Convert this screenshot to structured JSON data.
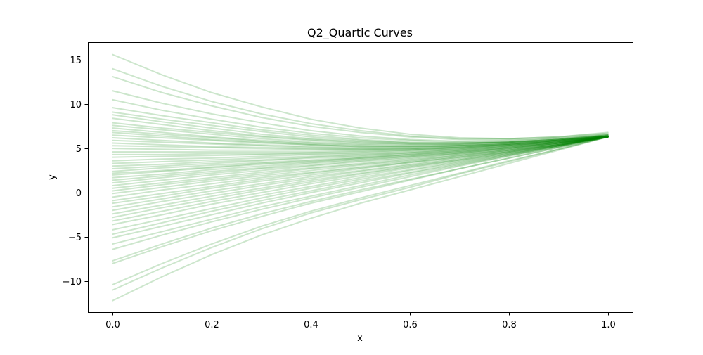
{
  "chart_data": {
    "type": "line",
    "title": "Q2_Quartic Curves",
    "xlabel": "x",
    "ylabel": "y",
    "xlim": [
      -0.05,
      1.05
    ],
    "ylim": [
      -13.5,
      17.0
    ],
    "xticks": [
      0.0,
      0.2,
      0.4,
      0.6,
      0.8,
      1.0
    ],
    "xtick_labels": [
      "0.0",
      "0.2",
      "0.4",
      "0.6",
      "0.8",
      "1.0"
    ],
    "yticks": [
      -10,
      -5,
      0,
      5,
      10,
      15
    ],
    "ytick_labels": [
      "−10",
      "−5",
      "0",
      "5",
      "10",
      "15"
    ],
    "grid": false,
    "legend": "none",
    "line_color": "#008000",
    "line_opacity": 0.2,
    "x": [
      0.0,
      0.1,
      0.2,
      0.3,
      0.4,
      0.5,
      0.6,
      0.7,
      0.8,
      0.9,
      1.0
    ],
    "series": [
      {
        "values": [
          15.6,
          13.3,
          11.3,
          9.7,
          8.3,
          7.3,
          6.6,
          6.2,
          6.1,
          6.3,
          6.8
        ]
      },
      {
        "values": [
          14.0,
          12.0,
          10.3,
          8.9,
          7.8,
          7.0,
          6.4,
          6.1,
          6.1,
          6.3,
          6.7
        ]
      },
      {
        "values": [
          13.1,
          11.3,
          9.8,
          8.5,
          7.5,
          6.8,
          6.3,
          6.0,
          6.0,
          6.2,
          6.6
        ]
      },
      {
        "values": [
          11.5,
          10.1,
          8.9,
          7.9,
          7.0,
          6.4,
          6.0,
          5.8,
          5.9,
          6.1,
          6.6
        ]
      },
      {
        "values": [
          10.5,
          9.3,
          8.3,
          7.4,
          6.7,
          6.2,
          5.9,
          5.7,
          5.8,
          6.1,
          6.5
        ]
      },
      {
        "values": [
          9.6,
          8.7,
          7.9,
          7.1,
          6.5,
          6.0,
          5.7,
          5.6,
          5.7,
          6.0,
          6.5
        ]
      },
      {
        "values": [
          9.1,
          8.3,
          7.6,
          6.9,
          6.3,
          5.9,
          5.6,
          5.6,
          5.7,
          6.0,
          6.5
        ]
      },
      {
        "values": [
          8.8,
          8.0,
          7.3,
          6.6,
          6.1,
          5.8,
          5.6,
          5.6,
          5.7,
          6.0,
          6.4
        ]
      },
      {
        "values": [
          8.4,
          7.7,
          7.0,
          6.4,
          6.0,
          5.7,
          5.5,
          5.5,
          5.7,
          6.0,
          6.5
        ]
      },
      {
        "values": [
          7.9,
          7.3,
          6.8,
          6.3,
          5.9,
          5.6,
          5.5,
          5.5,
          5.7,
          6.0,
          6.4
        ]
      },
      {
        "values": [
          7.6,
          7.1,
          6.6,
          6.1,
          5.7,
          5.5,
          5.4,
          5.4,
          5.6,
          5.9,
          6.4
        ]
      },
      {
        "values": [
          7.3,
          6.8,
          6.3,
          5.9,
          5.6,
          5.4,
          5.3,
          5.4,
          5.6,
          5.9,
          6.4
        ]
      },
      {
        "values": [
          7.0,
          6.6,
          6.2,
          5.8,
          5.5,
          5.3,
          5.2,
          5.3,
          5.5,
          5.9,
          6.4
        ]
      },
      {
        "values": [
          6.8,
          6.4,
          6.0,
          5.7,
          5.4,
          5.2,
          5.2,
          5.3,
          5.5,
          5.9,
          6.4
        ]
      },
      {
        "values": [
          6.5,
          6.2,
          5.9,
          5.6,
          5.4,
          5.2,
          5.2,
          5.3,
          5.5,
          5.9,
          6.4
        ]
      },
      {
        "values": [
          6.2,
          5.9,
          5.6,
          5.4,
          5.2,
          5.1,
          5.1,
          5.2,
          5.5,
          5.9,
          6.4
        ]
      },
      {
        "values": [
          5.9,
          5.7,
          5.5,
          5.3,
          5.1,
          5.0,
          5.0,
          5.2,
          5.4,
          5.8,
          6.3
        ]
      },
      {
        "values": [
          5.6,
          5.4,
          5.2,
          5.1,
          5.0,
          4.9,
          5.0,
          5.1,
          5.4,
          5.8,
          6.4
        ]
      },
      {
        "values": [
          5.3,
          5.2,
          5.1,
          5.0,
          4.9,
          4.9,
          4.9,
          5.1,
          5.4,
          5.8,
          6.3
        ]
      },
      {
        "values": [
          5.0,
          4.9,
          4.8,
          4.8,
          4.8,
          4.8,
          4.9,
          5.1,
          5.4,
          5.8,
          6.3
        ]
      },
      {
        "values": [
          4.6,
          4.6,
          4.6,
          4.6,
          4.6,
          4.7,
          4.8,
          5.0,
          5.3,
          5.8,
          6.4
        ]
      },
      {
        "values": [
          4.3,
          4.3,
          4.4,
          4.4,
          4.5,
          4.6,
          4.8,
          5.0,
          5.3,
          5.7,
          6.3
        ]
      },
      {
        "values": [
          4.0,
          4.1,
          4.2,
          4.3,
          4.4,
          4.5,
          4.7,
          4.9,
          5.3,
          5.7,
          6.3
        ]
      },
      {
        "values": [
          3.6,
          3.8,
          3.9,
          4.1,
          4.3,
          4.4,
          4.6,
          4.9,
          5.2,
          5.7,
          6.4
        ]
      },
      {
        "values": [
          3.3,
          3.5,
          3.7,
          3.9,
          4.1,
          4.3,
          4.5,
          4.8,
          5.2,
          5.7,
          6.3
        ]
      },
      {
        "values": [
          3.0,
          3.2,
          3.5,
          3.7,
          4.0,
          4.2,
          4.5,
          4.8,
          5.2,
          5.7,
          6.3
        ]
      },
      {
        "values": [
          2.7,
          3.0,
          3.3,
          3.6,
          3.9,
          4.1,
          4.4,
          4.7,
          5.1,
          5.6,
          6.4
        ]
      },
      {
        "values": [
          2.4,
          2.8,
          3.1,
          3.4,
          3.7,
          4.0,
          4.3,
          4.7,
          5.1,
          5.6,
          6.3
        ]
      },
      {
        "values": [
          2.2,
          2.5,
          2.9,
          3.3,
          3.6,
          3.9,
          4.3,
          4.6,
          5.1,
          5.6,
          6.3
        ]
      },
      {
        "values": [
          2.0,
          2.4,
          2.8,
          3.2,
          3.5,
          3.9,
          4.2,
          4.6,
          5.0,
          5.6,
          6.4
        ]
      },
      {
        "values": [
          1.7,
          2.1,
          2.6,
          3.0,
          3.4,
          3.8,
          4.1,
          4.5,
          5.0,
          5.6,
          6.3
        ]
      },
      {
        "values": [
          1.4,
          1.9,
          2.4,
          2.8,
          3.3,
          3.7,
          4.1,
          4.5,
          5.0,
          5.6,
          6.3
        ]
      },
      {
        "values": [
          1.1,
          1.7,
          2.2,
          2.7,
          3.1,
          3.6,
          4.0,
          4.4,
          4.9,
          5.5,
          6.4
        ]
      },
      {
        "values": [
          0.8,
          1.4,
          2.0,
          2.5,
          3.0,
          3.5,
          3.9,
          4.4,
          4.9,
          5.5,
          6.3
        ]
      },
      {
        "values": [
          0.5,
          1.1,
          1.7,
          2.3,
          2.8,
          3.3,
          3.8,
          4.3,
          4.8,
          5.5,
          6.3
        ]
      },
      {
        "values": [
          0.2,
          0.9,
          1.5,
          2.1,
          2.7,
          3.2,
          3.7,
          4.2,
          4.8,
          5.5,
          6.4
        ]
      },
      {
        "values": [
          -0.1,
          0.6,
          1.3,
          1.9,
          2.5,
          3.1,
          3.6,
          4.2,
          4.8,
          5.4,
          6.3
        ]
      },
      {
        "values": [
          -0.5,
          0.3,
          1.0,
          1.7,
          2.3,
          2.9,
          3.5,
          4.1,
          4.7,
          5.4,
          6.3
        ]
      },
      {
        "values": [
          -0.9,
          -0.1,
          0.7,
          1.5,
          2.2,
          2.8,
          3.4,
          4.0,
          4.7,
          5.4,
          6.3
        ]
      },
      {
        "values": [
          -1.2,
          -0.4,
          0.5,
          1.3,
          2.0,
          2.7,
          3.4,
          4.0,
          4.6,
          5.4,
          6.4
        ]
      },
      {
        "values": [
          -1.6,
          -0.7,
          0.2,
          1.0,
          1.8,
          2.5,
          3.2,
          3.9,
          4.6,
          5.4,
          6.3
        ]
      },
      {
        "values": [
          -2.0,
          -1.0,
          -0.1,
          0.8,
          1.6,
          2.4,
          3.1,
          3.8,
          4.6,
          5.4,
          6.3
        ]
      },
      {
        "values": [
          -2.4,
          -1.4,
          -0.4,
          0.5,
          1.4,
          2.2,
          3.0,
          3.7,
          4.5,
          5.3,
          6.3
        ]
      },
      {
        "values": [
          -2.8,
          -1.7,
          -0.7,
          0.3,
          1.2,
          2.1,
          2.9,
          3.7,
          4.5,
          5.3,
          6.4
        ]
      },
      {
        "values": [
          -3.2,
          -2.1,
          -1.0,
          0.0,
          1.0,
          1.9,
          2.8,
          3.6,
          4.4,
          5.3,
          6.3
        ]
      },
      {
        "values": [
          -3.6,
          -2.5,
          -1.3,
          -0.3,
          0.7,
          1.7,
          2.6,
          3.5,
          4.4,
          5.3,
          6.3
        ]
      },
      {
        "values": [
          -4.2,
          -3.0,
          -1.8,
          -0.6,
          0.5,
          1.5,
          2.5,
          3.4,
          4.3,
          5.3,
          6.4
        ]
      },
      {
        "values": [
          -4.7,
          -3.4,
          -2.1,
          -0.9,
          0.2,
          1.3,
          2.3,
          3.3,
          4.3,
          5.3,
          6.3
        ]
      },
      {
        "values": [
          -5.1,
          -3.8,
          -2.5,
          -1.2,
          0.0,
          1.1,
          2.2,
          3.2,
          4.2,
          5.2,
          6.3
        ]
      },
      {
        "values": [
          -5.8,
          -4.4,
          -3.0,
          -1.6,
          -0.4,
          0.8,
          2.0,
          3.1,
          4.2,
          5.2,
          6.3
        ]
      },
      {
        "values": [
          -6.4,
          -4.8,
          -3.3,
          -1.9,
          -0.6,
          0.6,
          1.8,
          3.0,
          4.1,
          5.2,
          6.4
        ]
      },
      {
        "values": [
          -7.7,
          -5.8,
          -4.0,
          -2.4,
          -1.0,
          0.3,
          1.5,
          2.7,
          3.9,
          5.1,
          6.3
        ]
      },
      {
        "values": [
          -8.0,
          -6.1,
          -4.3,
          -2.7,
          -1.2,
          0.1,
          1.4,
          2.7,
          3.9,
          5.1,
          6.3
        ]
      },
      {
        "values": [
          -10.4,
          -8.0,
          -5.8,
          -3.8,
          -2.1,
          -0.6,
          0.8,
          2.2,
          3.6,
          4.9,
          6.3
        ]
      },
      {
        "values": [
          -11.0,
          -8.5,
          -6.2,
          -4.1,
          -2.3,
          -0.8,
          0.6,
          2.1,
          3.5,
          4.9,
          6.3
        ]
      },
      {
        "values": [
          -12.2,
          -9.5,
          -7.0,
          -4.8,
          -2.9,
          -1.2,
          0.3,
          1.8,
          3.3,
          4.8,
          6.3
        ]
      }
    ]
  }
}
